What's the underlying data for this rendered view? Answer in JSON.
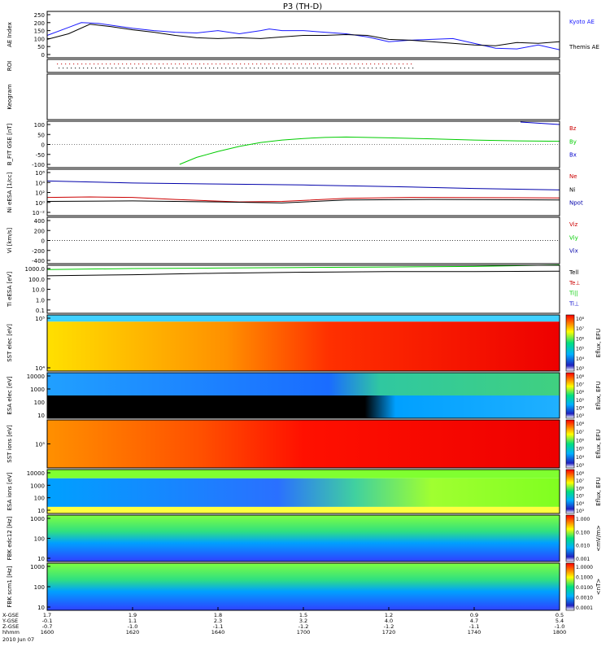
{
  "title": "P3 (TH-D)",
  "chart_data": {
    "type": "line",
    "title": "P3 (TH-D)",
    "x": {
      "hhmm_labels": [
        "1600",
        "1620",
        "1640",
        "1700",
        "1720",
        "1740",
        "1800"
      ],
      "row_labels": [
        "X-GSE",
        "Y-GSE",
        "Z-GSE",
        "hhmm",
        "2010 Jun 07"
      ],
      "x_gse": [
        "1.7",
        "1.9",
        "1.8",
        "1.5",
        "1.2",
        "0.9",
        "0.5"
      ],
      "y_gse": [
        "-0.1",
        "1.1",
        "2.3",
        "3.2",
        "4.0",
        "4.7",
        "5.4"
      ],
      "z_gse": [
        "-0.7",
        "-1.0",
        "-1.1",
        "-1.2",
        "-1.2",
        "-1.1",
        "-1.0"
      ]
    },
    "panels": [
      {
        "id": "ae",
        "ylabel": "AE Index",
        "yticks": [
          "250",
          "200",
          "150",
          "100",
          "50",
          "0"
        ],
        "series": [
          {
            "name": "Kyoto AE",
            "color": "#1a1aff",
            "times": [
              0,
              5,
              8,
              12,
              20,
              25,
              30,
              35,
              40,
              45,
              50,
              52,
              55,
              60,
              65,
              70,
              75,
              80,
              85,
              90,
              95,
              100,
              105,
              110,
              115,
              120
            ],
            "values": [
              120,
              170,
              200,
              195,
              165,
              150,
              140,
              135,
              150,
              130,
              150,
              160,
              150,
              150,
              140,
              130,
              110,
              80,
              90,
              95,
              100,
              70,
              40,
              35,
              60,
              30
            ]
          },
          {
            "name": "Themis AE",
            "color": "#000000",
            "times": [
              0,
              5,
              10,
              15,
              20,
              25,
              30,
              35,
              40,
              45,
              50,
              55,
              60,
              65,
              70,
              75,
              80,
              85,
              90,
              95,
              100,
              105,
              110,
              115,
              120
            ],
            "values": [
              95,
              130,
              190,
              175,
              155,
              140,
              120,
              105,
              100,
              105,
              100,
              110,
              120,
              120,
              125,
              120,
              95,
              90,
              80,
              70,
              60,
              55,
              75,
              70,
              80
            ]
          }
        ]
      },
      {
        "id": "roi",
        "ylabel": "ROI"
      },
      {
        "id": "keogram",
        "ylabel": "Keogram"
      },
      {
        "id": "bfield",
        "ylabel": "B_FIT GSE [nT]",
        "yticks": [
          "100",
          "50",
          "0",
          "-50",
          "-100"
        ],
        "series": [
          {
            "name": "Bz",
            "color": "#cc0000",
            "times": [],
            "values": []
          },
          {
            "name": "By",
            "color": "#00cc00",
            "times": [
              31,
              35,
              40,
              45,
              50,
              55,
              60,
              65,
              70,
              75,
              80,
              90,
              100,
              110,
              120
            ],
            "values": [
              -100,
              -65,
              -35,
              -10,
              10,
              22,
              30,
              35,
              37,
              35,
              33,
              28,
              22,
              18,
              16
            ]
          },
          {
            "name": "Bx",
            "color": "#0000cc",
            "times": [],
            "values": []
          }
        ]
      },
      {
        "id": "density",
        "ylabel": "Ni eESA [1/cc]",
        "yticks": [
          "10⁶",
          "10⁴",
          "10²",
          "10⁰",
          "10⁻²"
        ],
        "series": [
          {
            "name": "Ne",
            "color": "#cc0000",
            "times": [],
            "values": []
          },
          {
            "name": "Ni",
            "color": "#000000",
            "times": [],
            "values": []
          },
          {
            "name": "Npot",
            "color": "#0000aa",
            "times": [],
            "values": []
          }
        ]
      },
      {
        "id": "velocity",
        "ylabel": "Vi [km/s]",
        "yticks": [
          "400",
          "200",
          "0",
          "-200",
          "-400"
        ],
        "series": [
          {
            "name": "Viz",
            "color": "#cc0000",
            "times": [],
            "values": []
          },
          {
            "name": "Viy",
            "color": "#00cc00",
            "times": [],
            "values": []
          },
          {
            "name": "Vix",
            "color": "#0000aa",
            "times": [],
            "values": []
          }
        ]
      },
      {
        "id": "temperature",
        "ylabel": "Ti eESA [eV]",
        "yticks": [
          "1000.0",
          "100.0",
          "10.0",
          "1.0",
          "0.1"
        ],
        "series": [
          {
            "name": "Tell",
            "color": "#000000",
            "times": [],
            "values": []
          },
          {
            "name": "Te⊥",
            "color": "#cc0000",
            "times": [],
            "values": []
          },
          {
            "name": "Ti||",
            "color": "#00cc00",
            "times": [],
            "values": []
          },
          {
            "name": "Ti⊥",
            "color": "#0000cc",
            "times": [],
            "values": []
          }
        ]
      },
      {
        "id": "sst_e",
        "type": "heatmap",
        "ylabel": "SST elec [eV]",
        "yticks": [
          "10⁵",
          "10⁴"
        ],
        "cbar_label": "Eflux, EFU"
      },
      {
        "id": "esa_e",
        "type": "heatmap",
        "ylabel": "ESA elec [eV]",
        "yticks": [
          "10000",
          "1000",
          "100",
          "10"
        ],
        "cbar_label": "Eflux, EFU"
      },
      {
        "id": "sst_i",
        "type": "heatmap",
        "ylabel": "SST ions [eV]",
        "yticks": [
          "10⁵"
        ],
        "cbar_label": "Eflux, EFU"
      },
      {
        "id": "esa_i",
        "type": "heatmap",
        "ylabel": "ESA ions [eV]",
        "yticks": [
          "10000",
          "1000",
          "100",
          "10"
        ],
        "cbar_label": "Eflux, EFU"
      },
      {
        "id": "fbk1",
        "type": "heatmap",
        "ylabel": "FBK edc12 [Hz]",
        "yticks": [
          "1000",
          "100",
          "10"
        ],
        "cbar_label": "<mV/m>",
        "cbar_ticks": [
          "1.000",
          "0.100",
          "0.010",
          "0.001"
        ]
      },
      {
        "id": "fbk2",
        "type": "heatmap",
        "ylabel": "FBK scm1 [Hz]",
        "yticks": [
          "1000",
          "100",
          "10"
        ],
        "cbar_label": "<nT>",
        "cbar_ticks": [
          "1.0000",
          "0.1000",
          "0.0100",
          "0.0010",
          "0.0001"
        ]
      }
    ],
    "eflux_cbar_ticks": [
      "10⁸",
      "10⁷",
      "10⁶",
      "10⁵",
      "10⁴",
      "10³"
    ]
  }
}
